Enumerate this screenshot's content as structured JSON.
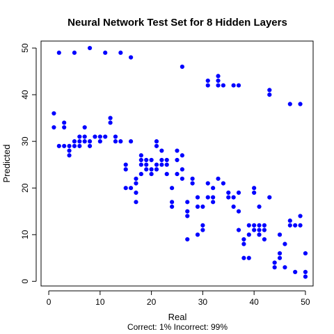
{
  "chart_data": {
    "type": "scatter",
    "title": "Neural Network Test Set for 8 Hidden Layers",
    "xlabel": "Real",
    "ylabel": "Predicted",
    "subtitle": "Correct: 1% Incorrect: 99%",
    "xlim": [
      -1.5,
      51.5
    ],
    "ylim": [
      -1,
      51.5
    ],
    "xticks": [
      0,
      10,
      20,
      30,
      40,
      50
    ],
    "yticks": [
      0,
      10,
      20,
      30,
      40,
      50
    ],
    "point_color": "#0000ff",
    "points": [
      [
        1,
        36
      ],
      [
        1,
        33
      ],
      [
        2,
        49
      ],
      [
        2,
        29
      ],
      [
        3,
        34
      ],
      [
        3,
        33
      ],
      [
        3,
        29
      ],
      [
        4,
        29
      ],
      [
        4,
        28
      ],
      [
        4,
        27
      ],
      [
        5,
        49
      ],
      [
        5,
        30
      ],
      [
        5,
        29
      ],
      [
        6,
        31
      ],
      [
        6,
        30
      ],
      [
        6,
        29
      ],
      [
        7,
        33
      ],
      [
        7,
        31
      ],
      [
        7,
        30
      ],
      [
        8,
        50
      ],
      [
        8,
        30
      ],
      [
        8,
        29
      ],
      [
        9,
        31
      ],
      [
        10,
        31
      ],
      [
        10,
        30
      ],
      [
        11,
        49
      ],
      [
        11,
        31
      ],
      [
        12,
        35
      ],
      [
        12,
        34
      ],
      [
        13,
        31
      ],
      [
        13,
        30
      ],
      [
        14,
        49
      ],
      [
        14,
        30
      ],
      [
        15,
        25
      ],
      [
        15,
        24
      ],
      [
        15,
        20
      ],
      [
        16,
        48
      ],
      [
        16,
        30
      ],
      [
        16,
        20
      ],
      [
        17,
        22
      ],
      [
        17,
        21
      ],
      [
        17,
        19
      ],
      [
        17,
        17
      ],
      [
        18,
        27
      ],
      [
        18,
        26
      ],
      [
        18,
        25
      ],
      [
        18,
        23
      ],
      [
        19,
        26
      ],
      [
        19,
        25
      ],
      [
        19,
        24
      ],
      [
        20,
        26
      ],
      [
        20,
        24
      ],
      [
        20,
        23
      ],
      [
        21,
        30
      ],
      [
        21,
        29
      ],
      [
        21,
        25
      ],
      [
        21,
        24
      ],
      [
        22,
        28
      ],
      [
        22,
        26
      ],
      [
        22,
        25
      ],
      [
        23,
        26
      ],
      [
        23,
        25
      ],
      [
        23,
        23
      ],
      [
        24,
        20
      ],
      [
        24,
        17
      ],
      [
        24,
        16
      ],
      [
        25,
        28
      ],
      [
        25,
        26
      ],
      [
        25,
        23
      ],
      [
        26,
        46
      ],
      [
        26,
        27
      ],
      [
        26,
        24
      ],
      [
        26,
        22
      ],
      [
        27,
        17
      ],
      [
        27,
        15
      ],
      [
        27,
        14
      ],
      [
        27,
        9
      ],
      [
        28,
        22
      ],
      [
        28,
        21
      ],
      [
        29,
        18
      ],
      [
        29,
        16
      ],
      [
        29,
        10
      ],
      [
        30,
        16
      ],
      [
        30,
        12
      ],
      [
        30,
        11
      ],
      [
        31,
        43
      ],
      [
        31,
        42
      ],
      [
        31,
        21
      ],
      [
        31,
        18
      ],
      [
        32,
        20
      ],
      [
        32,
        18
      ],
      [
        32,
        17
      ],
      [
        33,
        44
      ],
      [
        33,
        43
      ],
      [
        33,
        42
      ],
      [
        33,
        22
      ],
      [
        34,
        42
      ],
      [
        34,
        21
      ],
      [
        35,
        19
      ],
      [
        35,
        18
      ],
      [
        36,
        42
      ],
      [
        36,
        18
      ],
      [
        36,
        16
      ],
      [
        37,
        42
      ],
      [
        37,
        19
      ],
      [
        37,
        15
      ],
      [
        37,
        11
      ],
      [
        38,
        9
      ],
      [
        38,
        8
      ],
      [
        38,
        5
      ],
      [
        39,
        12
      ],
      [
        39,
        10
      ],
      [
        39,
        5
      ],
      [
        40,
        20
      ],
      [
        40,
        19
      ],
      [
        40,
        12
      ],
      [
        40,
        11
      ],
      [
        41,
        16
      ],
      [
        41,
        12
      ],
      [
        41,
        11
      ],
      [
        41,
        10
      ],
      [
        42,
        12
      ],
      [
        42,
        11
      ],
      [
        42,
        9
      ],
      [
        43,
        41
      ],
      [
        43,
        40
      ],
      [
        43,
        18
      ],
      [
        44,
        4
      ],
      [
        44,
        3
      ],
      [
        45,
        10
      ],
      [
        45,
        6
      ],
      [
        45,
        5
      ],
      [
        46,
        8
      ],
      [
        46,
        3
      ],
      [
        47,
        38
      ],
      [
        47,
        13
      ],
      [
        47,
        12
      ],
      [
        48,
        12
      ],
      [
        48,
        2
      ],
      [
        49,
        38
      ],
      [
        49,
        14
      ],
      [
        49,
        12
      ],
      [
        50,
        6
      ],
      [
        50,
        2
      ],
      [
        50,
        1
      ]
    ]
  }
}
